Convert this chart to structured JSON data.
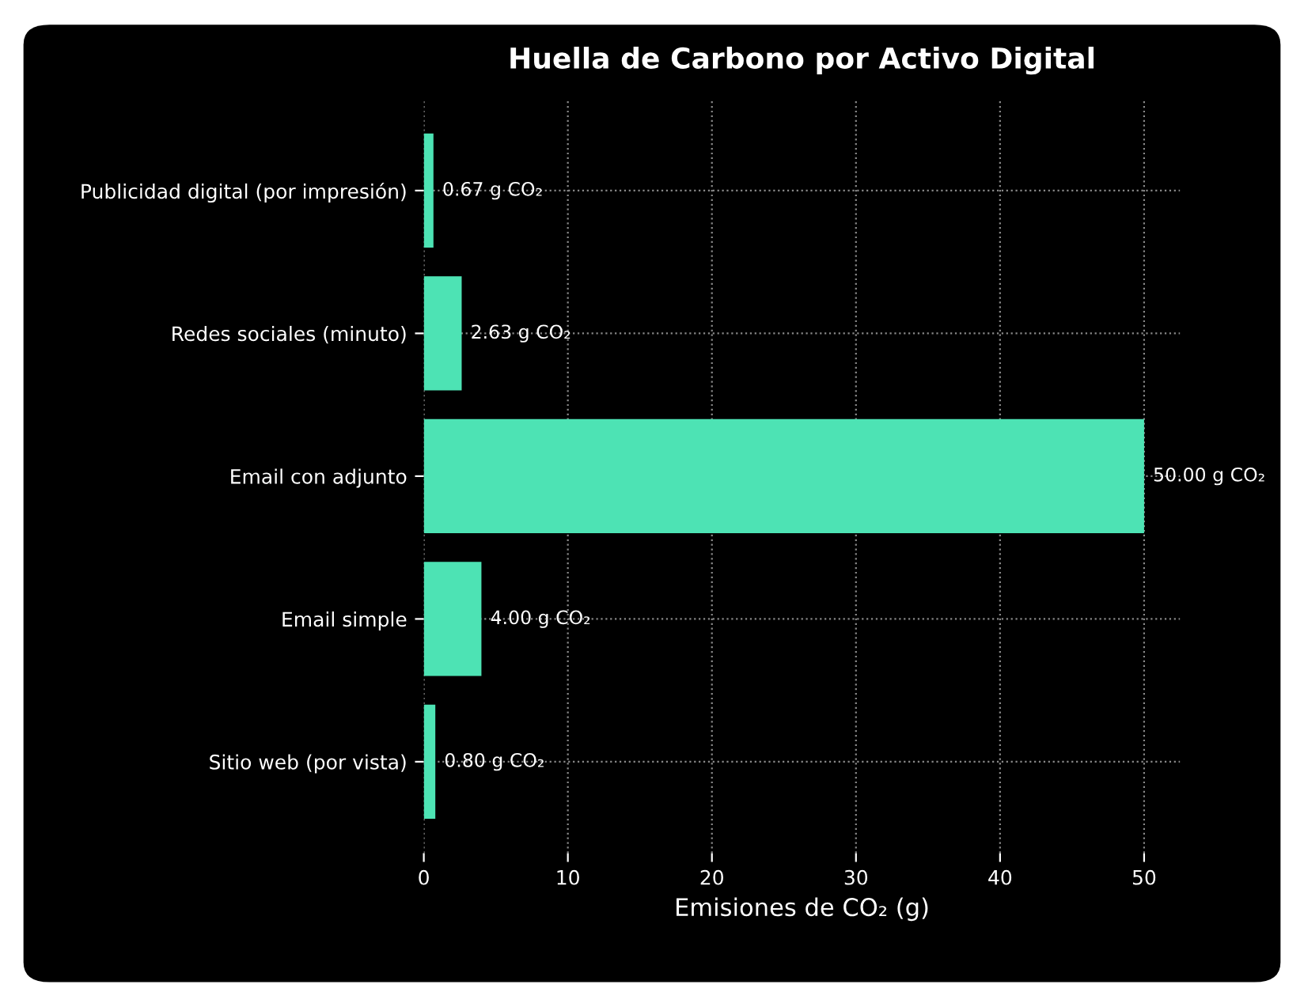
{
  "chart_data": {
    "type": "bar",
    "orientation": "horizontal",
    "title": "Huella de Carbono por Activo Digital",
    "xlabel": "Emisiones de CO₂ (g)",
    "categories": [
      "Publicidad digital (por impresión)",
      "Redes sociales (minuto)",
      "Email con adjunto",
      "Email simple",
      "Sitio web (por vista)"
    ],
    "values": [
      0.67,
      2.63,
      50.0,
      4.0,
      0.8
    ],
    "value_labels": [
      "0.67 g CO₂",
      "2.63 g CO₂",
      "50.00 g CO₂",
      "4.00 g CO₂",
      "0.80 g CO₂"
    ],
    "color": "#4de3b4",
    "xlim": [
      0,
      52.5
    ],
    "xticks": [
      0,
      10,
      20,
      30,
      40,
      50
    ],
    "grid": true
  }
}
